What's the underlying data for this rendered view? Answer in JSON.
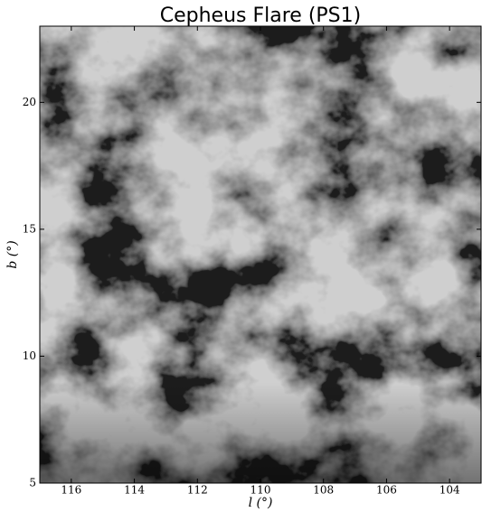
{
  "chart_data": {
    "type": "image",
    "title": "Cepheus Flare (PS1)",
    "xlabel": "l (°)",
    "ylabel": "b (°)",
    "xlim": [
      117,
      103
    ],
    "ylim": [
      5,
      23
    ],
    "xticks": [
      116,
      114,
      112,
      110,
      108,
      106,
      104
    ],
    "yticks": [
      5,
      10,
      15,
      20
    ],
    "colormap": "gray"
  }
}
